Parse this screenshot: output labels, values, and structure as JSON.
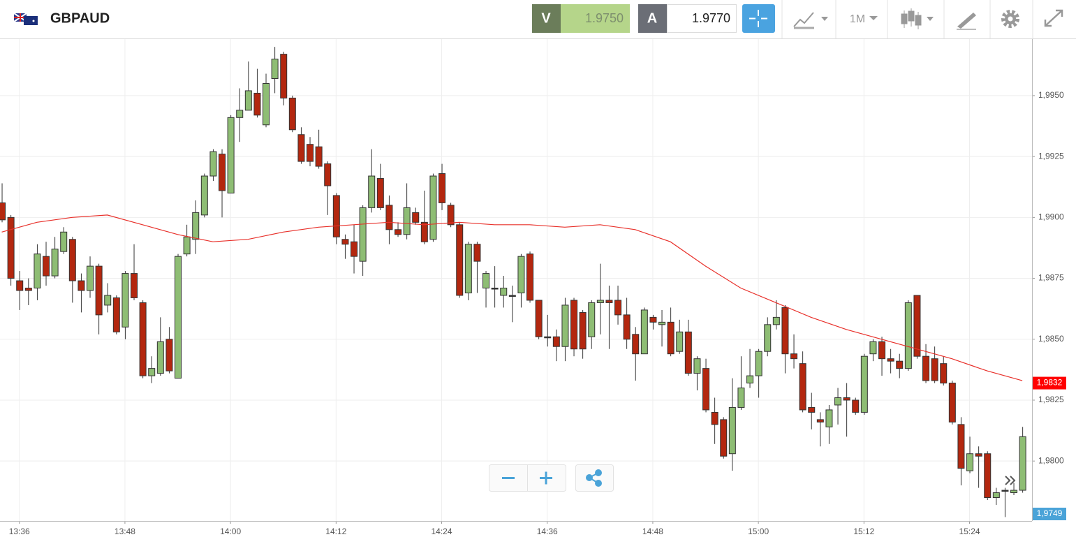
{
  "header": {
    "symbol": "GBPAUD",
    "sell_label": "V",
    "sell_price": "1.9750",
    "buy_label": "A",
    "buy_price": "1.9770",
    "timeframe": "1M"
  },
  "chart_data": {
    "type": "candlestick",
    "x": [
      814,
      815,
      816,
      817,
      818,
      819,
      820,
      821,
      822,
      823,
      824,
      825,
      826,
      827,
      828,
      829,
      830,
      831,
      832,
      833,
      834,
      835,
      836,
      837,
      838,
      839,
      840,
      841,
      842,
      843,
      844,
      845,
      846,
      847,
      848,
      849,
      850,
      851,
      852,
      853,
      854,
      855,
      856,
      857,
      858,
      859,
      860,
      861,
      862,
      863,
      864,
      865,
      866,
      867,
      868,
      869,
      870,
      871,
      872,
      873,
      874,
      875,
      876,
      877,
      878,
      879,
      880,
      881,
      882,
      883,
      884,
      885,
      886,
      887,
      888,
      889,
      890,
      891,
      892,
      893,
      894,
      895,
      896,
      897,
      898,
      899,
      900,
      901,
      902,
      903,
      904,
      905,
      906,
      907,
      908,
      909,
      910,
      911,
      912,
      913,
      914,
      915,
      916,
      917,
      918,
      919,
      920,
      921,
      922,
      923,
      924,
      925,
      926,
      927,
      928,
      929,
      930
    ],
    "open": [
      1.9906,
      1.99,
      1.9874,
      1.9871,
      1.9871,
      1.9884,
      1.9876,
      1.9886,
      1.9891,
      1.9874,
      1.987,
      1.988,
      1.9864,
      1.9867,
      1.9855,
      1.9877,
      1.9865,
      1.9835,
      1.9836,
      1.985,
      1.9834,
      1.9885,
      1.9891,
      1.9901,
      1.9917,
      1.9926,
      1.991,
      1.9941,
      1.9944,
      1.9951,
      1.9938,
      1.9957,
      1.9967,
      1.9949,
      1.9934,
      1.993,
      1.9929,
      1.9922,
      1.9909,
      1.9891,
      1.989,
      1.9882,
      1.9904,
      1.9916,
      1.9905,
      1.9895,
      1.9893,
      1.9902,
      1.9898,
      1.9891,
      1.9918,
      1.9905,
      1.9897,
      1.9869,
      1.9889,
      1.9871,
      1.9871,
      1.9868,
      1.9868,
      1.9869,
      1.9885,
      1.9866,
      1.9851,
      1.9851,
      1.9847,
      1.9866,
      1.9861,
      1.9851,
      1.9865,
      1.9866,
      1.9866,
      1.986,
      1.9852,
      1.9844,
      1.9859,
      1.9856,
      1.9857,
      1.9845,
      1.9853,
      1.9836,
      1.9838,
      1.982,
      1.9817,
      1.9803,
      1.9822,
      1.9832,
      1.9835,
      1.9845,
      1.9856,
      1.9863,
      1.9844,
      1.984,
      1.9822,
      1.9817,
      1.9814,
      1.9823,
      1.9826,
      1.9825,
      1.982,
      1.9844,
      1.9849,
      1.9842,
      1.9841,
      1.9838,
      1.9868,
      1.9843,
      1.9842,
      1.984,
      1.9832,
      1.9815,
      1.9796,
      1.9803,
      1.9803,
      1.9785,
      1.9788,
      1.9787,
      1.9788
    ],
    "high": [
      1.9914,
      1.9901,
      1.9878,
      1.9875,
      1.9889,
      1.989,
      1.9892,
      1.9896,
      1.9892,
      1.9877,
      1.9884,
      1.9881,
      1.9873,
      1.9868,
      1.9878,
      1.9889,
      1.9866,
      1.9843,
      1.9859,
      1.9855,
      1.9885,
      1.9897,
      1.9907,
      1.9918,
      1.9928,
      1.9928,
      1.9942,
      1.9953,
      1.9964,
      1.9961,
      1.9959,
      1.997,
      1.9968,
      1.995,
      1.9937,
      1.9933,
      1.9936,
      1.9923,
      1.991,
      1.9893,
      1.9897,
      1.9905,
      1.9928,
      1.9922,
      1.9909,
      1.9898,
      1.9914,
      1.9904,
      1.9911,
      1.9918,
      1.9922,
      1.9906,
      1.9898,
      1.989,
      1.989,
      1.9878,
      1.988,
      1.9876,
      1.9872,
      1.9885,
      1.9886,
      1.9866,
      1.986,
      1.9854,
      1.9867,
      1.9867,
      1.9862,
      1.9866,
      1.9881,
      1.9872,
      1.9872,
      1.9867,
      1.9855,
      1.9863,
      1.986,
      1.9862,
      1.9863,
      1.9858,
      1.9858,
      1.9843,
      1.9842,
      1.9826,
      1.9818,
      1.9834,
      1.9843,
      1.9846,
      1.9846,
      1.9859,
      1.9866,
      1.9864,
      1.9852,
      1.9845,
      1.9828,
      1.982,
      1.9823,
      1.983,
      1.9832,
      1.9826,
      1.9844,
      1.985,
      1.9851,
      1.9846,
      1.9844,
      1.9866,
      1.9868,
      1.9848,
      1.9847,
      1.9843,
      1.9833,
      1.9818,
      1.981,
      1.9806,
      1.9804,
      1.9789,
      1.9789,
      1.9791,
      1.9814
    ],
    "low": [
      1.9898,
      1.9872,
      1.9862,
      1.9864,
      1.9866,
      1.9872,
      1.9875,
      1.9885,
      1.9865,
      1.9861,
      1.9867,
      1.9852,
      1.9861,
      1.9852,
      1.985,
      1.9866,
      1.9834,
      1.9832,
      1.9835,
      1.9836,
      1.9834,
      1.9884,
      1.9885,
      1.99,
      1.9915,
      1.99,
      1.991,
      1.9931,
      1.9944,
      1.9941,
      1.9937,
      1.9951,
      1.9946,
      1.9935,
      1.9922,
      1.9921,
      1.992,
      1.9901,
      1.9889,
      1.9883,
      1.9877,
      1.9876,
      1.9902,
      1.9903,
      1.9889,
      1.9892,
      1.9891,
      1.9897,
      1.9889,
      1.989,
      1.9903,
      1.9896,
      1.9867,
      1.9866,
      1.9869,
      1.9863,
      1.9863,
      1.9863,
      1.9857,
      1.9863,
      1.9865,
      1.985,
      1.9847,
      1.9841,
      1.9841,
      1.9843,
      1.9842,
      1.9846,
      1.9852,
      1.9846,
      1.9856,
      1.9846,
      1.9833,
      1.9844,
      1.9854,
      1.9847,
      1.9843,
      1.9844,
      1.9835,
      1.9829,
      1.982,
      1.9807,
      1.9801,
      1.9796,
      1.9821,
      1.983,
      1.9826,
      1.9843,
      1.9854,
      1.9836,
      1.9838,
      1.982,
      1.9813,
      1.9806,
      1.9807,
      1.9815,
      1.981,
      1.9819,
      1.9819,
      1.9841,
      1.9835,
      1.9836,
      1.9834,
      1.9837,
      1.9842,
      1.9832,
      1.9832,
      1.9831,
      1.9815,
      1.979,
      1.9795,
      1.9789,
      1.9784,
      1.9782,
      1.9777,
      1.9786,
      1.9787
    ],
    "close": [
      1.9899,
      1.9875,
      1.987,
      1.987,
      1.9885,
      1.9876,
      1.9887,
      1.9894,
      1.9874,
      1.987,
      1.988,
      1.986,
      1.9868,
      1.9853,
      1.9877,
      1.9867,
      1.9835,
      1.9838,
      1.9849,
      1.9837,
      1.9884,
      1.9892,
      1.9902,
      1.9917,
      1.9927,
      1.9911,
      1.9941,
      1.9944,
      1.9952,
      1.9942,
      1.9955,
      1.9965,
      1.9949,
      1.9936,
      1.9923,
      1.9923,
      1.9921,
      1.9913,
      1.9892,
      1.9889,
      1.9884,
      1.9904,
      1.9917,
      1.9904,
      1.9895,
      1.9893,
      1.9904,
      1.9898,
      1.989,
      1.9917,
      1.9906,
      1.9897,
      1.9868,
      1.9889,
      1.9882,
      1.9877,
      1.9871,
      1.9871,
      1.9868,
      1.9884,
      1.9866,
      1.9851,
      1.9851,
      1.9847,
      1.9864,
      1.9846,
      1.9846,
      1.9865,
      1.9866,
      1.9865,
      1.986,
      1.985,
      1.9844,
      1.9862,
      1.9857,
      1.9857,
      1.9844,
      1.9853,
      1.9836,
      1.9842,
      1.9821,
      1.9815,
      1.9802,
      1.9822,
      1.983,
      1.9835,
      1.9845,
      1.9856,
      1.9859,
      1.9844,
      1.9842,
      1.9821,
      1.982,
      1.9816,
      1.9821,
      1.9826,
      1.9825,
      1.982,
      1.9843,
      1.9849,
      1.9842,
      1.9841,
      1.9838,
      1.9865,
      1.9843,
      1.9833,
      1.9833,
      1.9832,
      1.9816,
      1.9797,
      1.9803,
      1.9802,
      1.9785,
      1.9787,
      1.9788,
      1.9788,
      1.981
    ],
    "up_color": "#8ebd74",
    "down_color": "#b3270f",
    "outline_color": "#333333",
    "moving_average": {
      "color": "#e8302a",
      "x": [
        814,
        818,
        822,
        826,
        830,
        834,
        838,
        842,
        846,
        850,
        854,
        858,
        862,
        866,
        870,
        874,
        878,
        882,
        886,
        890,
        894,
        898,
        902,
        906,
        910,
        914,
        918,
        922,
        926,
        930
      ],
      "values": [
        1.9894,
        1.9898,
        1.99,
        1.9901,
        1.9897,
        1.9893,
        1.989,
        1.9891,
        1.9894,
        1.9896,
        1.9897,
        1.9898,
        1.9897,
        1.9898,
        1.9897,
        1.9897,
        1.9896,
        1.9897,
        1.9895,
        1.989,
        1.988,
        1.9871,
        1.9865,
        1.9859,
        1.9854,
        1.985,
        1.9846,
        1.9842,
        1.9837,
        1.9833
      ]
    },
    "price_tags": [
      {
        "value": 1.9832,
        "label": "1,9832",
        "color": "#ff0000"
      },
      {
        "value": 1.9749,
        "label": "1,9749",
        "color": "#4aa3d8"
      }
    ],
    "xlim": [
      813.8,
      931.1
    ],
    "xticks": [
      {
        "value": 816,
        "label": "13:36"
      },
      {
        "value": 828,
        "label": "13:48"
      },
      {
        "value": 840,
        "label": "14:00"
      },
      {
        "value": 852,
        "label": "14:12"
      },
      {
        "value": 864,
        "label": "14:24"
      },
      {
        "value": 876,
        "label": "14:36"
      },
      {
        "value": 888,
        "label": "14:48"
      },
      {
        "value": 900,
        "label": "15:00"
      },
      {
        "value": 912,
        "label": "15:12"
      },
      {
        "value": 924,
        "label": "15:24"
      }
    ],
    "ylim": [
      1.97754,
      1.99732
    ],
    "yticks": [
      {
        "value": 1.98,
        "label": "1,9800"
      },
      {
        "value": 1.9825,
        "label": "1,9825"
      },
      {
        "value": 1.985,
        "label": "1,9850"
      },
      {
        "value": 1.9875,
        "label": "1,9875"
      },
      {
        "value": 1.99,
        "label": "1,9900"
      },
      {
        "value": 1.9925,
        "label": "1,9925"
      },
      {
        "value": 1.995,
        "label": "1,9950"
      }
    ],
    "grid": true
  }
}
